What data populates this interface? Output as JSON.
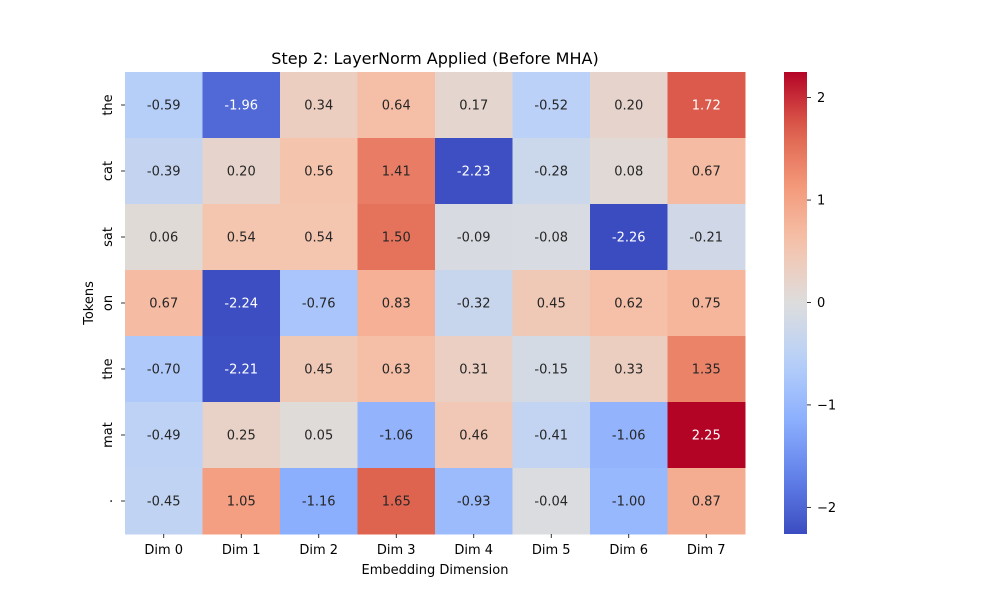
{
  "chart_data": {
    "type": "heatmap",
    "title": "Step 2: LayerNorm Applied (Before MHA)",
    "xlabel": "Embedding Dimension",
    "ylabel": "Tokens",
    "x_categories": [
      "Dim 0",
      "Dim 1",
      "Dim 2",
      "Dim 3",
      "Dim 4",
      "Dim 5",
      "Dim 6",
      "Dim 7"
    ],
    "y_categories": [
      "the",
      "cat",
      "sat",
      "on",
      "the",
      "mat",
      "."
    ],
    "values": [
      [
        -0.59,
        -1.96,
        0.34,
        0.64,
        0.17,
        -0.52,
        0.2,
        1.72
      ],
      [
        -0.39,
        0.2,
        0.56,
        1.41,
        -2.23,
        -0.28,
        0.08,
        0.67
      ],
      [
        0.06,
        0.54,
        0.54,
        1.5,
        -0.09,
        -0.08,
        -2.26,
        -0.21
      ],
      [
        0.67,
        -2.24,
        -0.76,
        0.83,
        -0.32,
        0.45,
        0.62,
        0.75
      ],
      [
        -0.7,
        -2.21,
        0.45,
        0.63,
        0.31,
        -0.15,
        0.33,
        1.35
      ],
      [
        -0.49,
        0.25,
        0.05,
        -1.06,
        0.46,
        -0.41,
        -1.06,
        2.25
      ],
      [
        -0.45,
        1.05,
        -1.16,
        1.65,
        -0.93,
        -0.04,
        -1.0,
        0.87
      ]
    ],
    "colormap": "coolwarm",
    "vmin": -2.26,
    "vmax": 2.25,
    "colorbar_ticks": [
      2,
      1,
      0,
      -1,
      -2
    ],
    "colorbar_tick_labels": [
      "2",
      "1",
      "0",
      "−1",
      "−2"
    ],
    "annotations": true
  }
}
